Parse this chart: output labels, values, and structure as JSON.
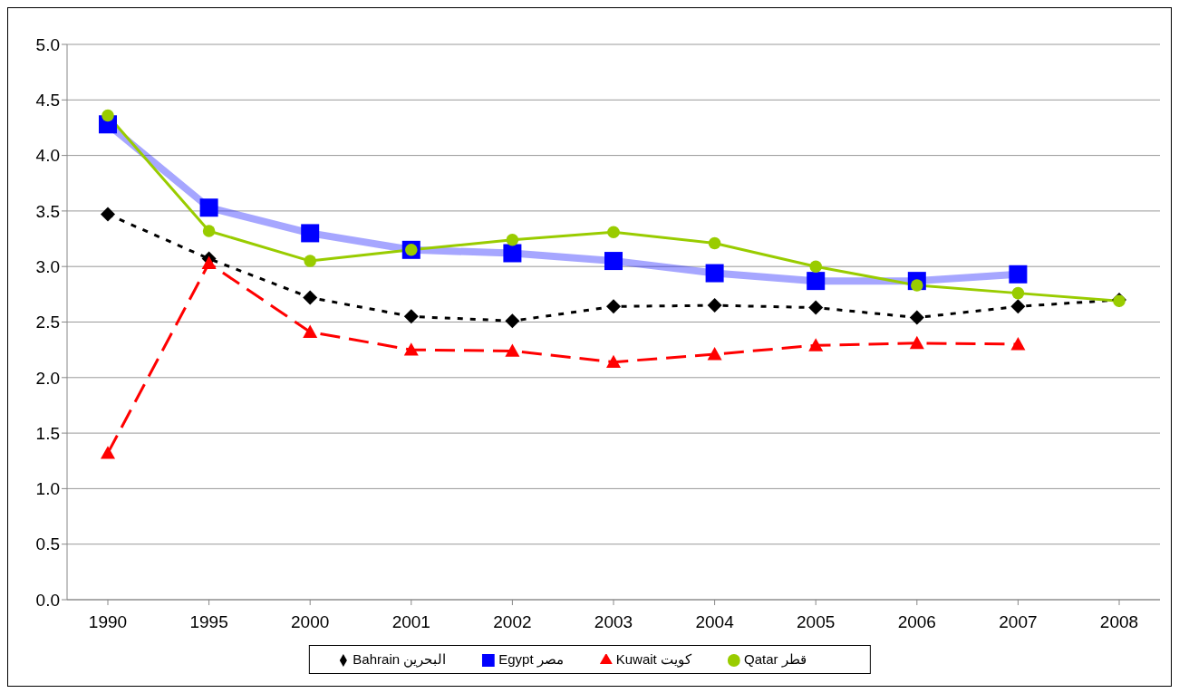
{
  "chart_data": {
    "type": "line",
    "categories": [
      "1990",
      "1995",
      "2000",
      "2001",
      "2002",
      "2003",
      "2004",
      "2005",
      "2006",
      "2007",
      "2008"
    ],
    "series": [
      {
        "name": "Bahrain البحرين",
        "color": "#000000",
        "marker": "diamond",
        "line_style": "dotted",
        "values": [
          3.47,
          3.07,
          2.72,
          2.55,
          2.51,
          2.64,
          2.65,
          2.63,
          2.54,
          2.64,
          2.7
        ]
      },
      {
        "name": "Egypt مصر",
        "color": "#0000ff",
        "marker": "square",
        "line_style": "solid",
        "values": [
          4.28,
          3.53,
          3.3,
          3.15,
          3.12,
          3.05,
          2.94,
          2.87,
          2.87,
          2.93,
          null
        ]
      },
      {
        "name": "Kuwait كويت",
        "color": "#ff0000",
        "marker": "triangle",
        "line_style": "dashed",
        "values": [
          1.32,
          3.03,
          2.41,
          2.25,
          2.24,
          2.14,
          2.21,
          2.29,
          2.31,
          2.3,
          null
        ]
      },
      {
        "name": "Qatar قطر",
        "color": "#99cc00",
        "marker": "circle",
        "line_style": "solid",
        "values": [
          4.36,
          3.32,
          3.05,
          3.15,
          3.24,
          3.31,
          3.21,
          3.0,
          2.83,
          2.76,
          2.69
        ]
      }
    ],
    "ylim": [
      0,
      5
    ],
    "yticks": [
      {
        "value": 0,
        "label": "0.0"
      },
      {
        "value": 0.5,
        "label": "0.5"
      },
      {
        "value": 1,
        "label": "1.0"
      },
      {
        "value": 1.5,
        "label": "1.5"
      },
      {
        "value": 2,
        "label": "2.0"
      },
      {
        "value": 2.5,
        "label": "2.5"
      },
      {
        "value": 3,
        "label": "3.0"
      },
      {
        "value": 3.5,
        "label": "3.5"
      },
      {
        "value": 4,
        "label": "4.0"
      },
      {
        "value": 4.5,
        "label": "4.5"
      },
      {
        "value": 5,
        "label": "5.0"
      }
    ],
    "grid": "y",
    "legend": "bottom"
  }
}
